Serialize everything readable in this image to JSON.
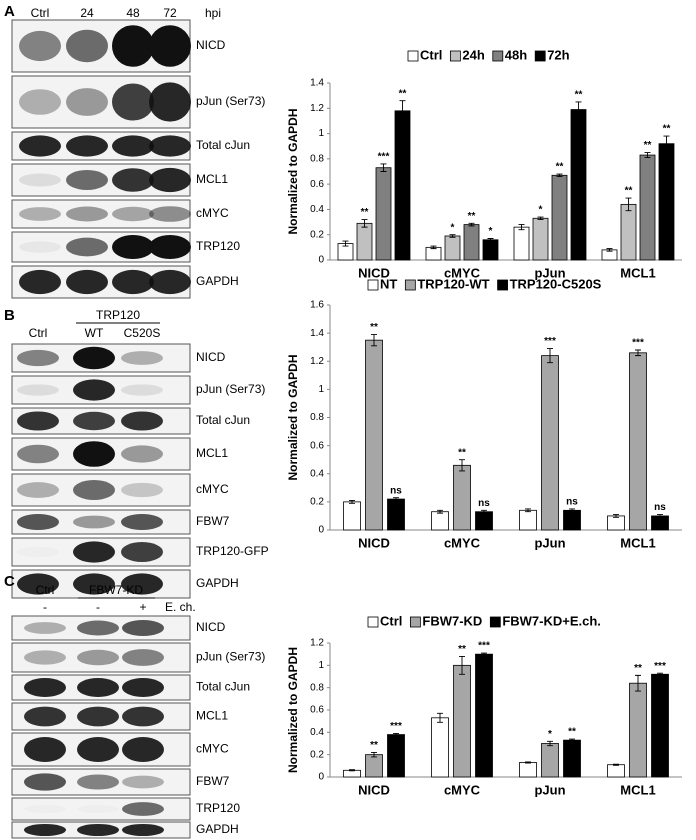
{
  "blots": [
    {
      "letter": "A",
      "columns": [
        "Ctrl",
        "24",
        "48",
        "72"
      ],
      "unit": "hpi",
      "rows": [
        "NICD",
        "pJun (Ser73)",
        "Total cJun",
        "MCL1",
        "cMYC",
        "TRP120",
        "GAPDH"
      ]
    },
    {
      "letter": "B",
      "group_label": "TRP120",
      "columns": [
        "Ctrl",
        "WT",
        "C520S"
      ],
      "rows": [
        "NICD",
        "pJun (Ser73)",
        "Total cJun",
        "MCL1",
        "cMYC",
        "FBW7",
        "TRP120-GFP",
        "GAPDH"
      ]
    },
    {
      "letter": "C",
      "columns": [
        "Ctrl",
        "FBW7-KD"
      ],
      "treatment": [
        "-",
        "-",
        "+"
      ],
      "treatment_label": "E. ch.",
      "rows": [
        "NICD",
        "pJun (Ser73)",
        "Total cJun",
        "MCL1",
        "cMYC",
        "FBW7",
        "TRP120",
        "GAPDH"
      ]
    }
  ],
  "chart_data": [
    {
      "type": "bar",
      "y_label": "Normalized to GAPDH",
      "categories": [
        "NICD",
        "cMYC",
        "pJun",
        "MCL1"
      ],
      "ylim": [
        0,
        1.4
      ],
      "yticks": [
        0,
        0.2,
        0.4,
        0.6,
        0.8,
        1,
        1.2,
        1.4
      ],
      "series": [
        {
          "name": "Ctrl",
          "color": "#ffffff",
          "values": [
            0.13,
            0.1,
            0.26,
            0.08
          ],
          "errors": [
            0.02,
            0.01,
            0.02,
            0.01
          ],
          "annotations": [
            null,
            null,
            null,
            null
          ]
        },
        {
          "name": "24h",
          "color": "#c0c0c0",
          "values": [
            0.29,
            0.19,
            0.33,
            0.44
          ],
          "errors": [
            0.03,
            0.01,
            0.01,
            0.05
          ],
          "annotations": [
            "**",
            "*",
            "*",
            "**"
          ]
        },
        {
          "name": "48h",
          "color": "#808080",
          "values": [
            0.73,
            0.28,
            0.67,
            0.83
          ],
          "errors": [
            0.03,
            0.01,
            0.01,
            0.02
          ],
          "annotations": [
            "***",
            "**",
            "**",
            "**"
          ]
        },
        {
          "name": "72h",
          "color": "#000000",
          "values": [
            1.18,
            0.16,
            1.19,
            0.92
          ],
          "errors": [
            0.08,
            0.01,
            0.06,
            0.06
          ],
          "annotations": [
            "**",
            "*",
            "**",
            "**"
          ]
        }
      ]
    },
    {
      "type": "bar",
      "y_label": "Normalized to GAPDH",
      "categories": [
        "NICD",
        "cMYC",
        "pJun",
        "MCL1"
      ],
      "ylim": [
        0,
        1.6
      ],
      "yticks": [
        0,
        0.2,
        0.4,
        0.6,
        0.8,
        1,
        1.2,
        1.4,
        1.6
      ],
      "series": [
        {
          "name": "NT",
          "color": "#ffffff",
          "values": [
            0.2,
            0.13,
            0.14,
            0.1
          ],
          "errors": [
            0.01,
            0.01,
            0.01,
            0.01
          ],
          "annotations": [
            null,
            null,
            null,
            null
          ]
        },
        {
          "name": "TRP120-WT",
          "color": "#a6a6a6",
          "values": [
            1.35,
            0.46,
            1.24,
            1.26
          ],
          "errors": [
            0.04,
            0.04,
            0.05,
            0.02
          ],
          "annotations": [
            "**",
            "**",
            "***",
            "***"
          ]
        },
        {
          "name": "TRP120-C520S",
          "color": "#000000",
          "values": [
            0.22,
            0.13,
            0.14,
            0.1
          ],
          "errors": [
            0.01,
            0.01,
            0.01,
            0.01
          ],
          "annotations": [
            "ns",
            "ns",
            "ns",
            "ns"
          ]
        }
      ]
    },
    {
      "type": "bar",
      "y_label": "Normalized to GAPDH",
      "categories": [
        "NICD",
        "cMYC",
        "pJun",
        "MCL1"
      ],
      "ylim": [
        0,
        1.2
      ],
      "yticks": [
        0,
        0.2,
        0.4,
        0.6,
        0.8,
        1,
        1.2
      ],
      "series": [
        {
          "name": "Ctrl",
          "color": "#ffffff",
          "values": [
            0.06,
            0.53,
            0.13,
            0.11
          ],
          "errors": [
            0.005,
            0.04,
            0.005,
            0.005
          ],
          "annotations": [
            null,
            null,
            null,
            null
          ]
        },
        {
          "name": "FBW7-KD",
          "color": "#a6a6a6",
          "values": [
            0.2,
            1.0,
            0.3,
            0.84
          ],
          "errors": [
            0.02,
            0.08,
            0.02,
            0.07
          ],
          "annotations": [
            "**",
            "**",
            "*",
            "**"
          ]
        },
        {
          "name": "FBW7-KD+E.ch.",
          "color": "#000000",
          "values": [
            0.38,
            1.1,
            0.33,
            0.92
          ],
          "errors": [
            0.01,
            0.01,
            0.01,
            0.01
          ],
          "annotations": [
            "***",
            "***",
            "**",
            "***"
          ]
        }
      ]
    }
  ]
}
